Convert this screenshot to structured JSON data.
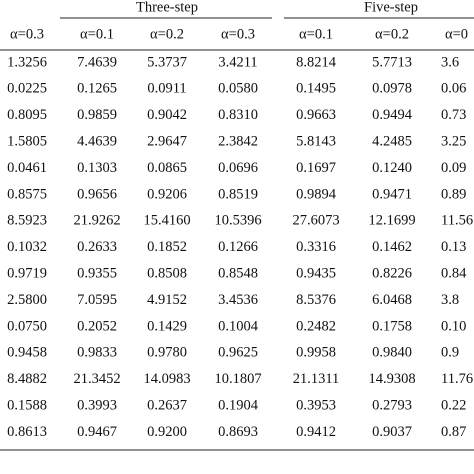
{
  "table": {
    "groups": [
      "Three-step",
      "Five-step"
    ],
    "header": [
      "α=0.3",
      "α=0.1",
      "α=0.2",
      "α=0.3",
      "α=0.1",
      "α=0.2",
      "α=0"
    ],
    "rows": [
      [
        "1.3256",
        "7.4639",
        "5.3737",
        "3.4211",
        "8.8214",
        "5.7713",
        "3.6"
      ],
      [
        "0.0225",
        "0.1265",
        "0.0911",
        "0.0580",
        "0.1495",
        "0.0978",
        "0.06"
      ],
      [
        "0.8095",
        "0.9859",
        "0.9042",
        "0.8310",
        "0.9663",
        "0.9494",
        "0.73"
      ],
      [
        "1.5805",
        "4.4639",
        "2.9647",
        "2.3842",
        "5.8143",
        "4.2485",
        "3.25"
      ],
      [
        "0.0461",
        "0.1303",
        "0.0865",
        "0.0696",
        "0.1697",
        "0.1240",
        "0.09"
      ],
      [
        "0.8575",
        "0.9656",
        "0.9206",
        "0.8519",
        "0.9894",
        "0.9471",
        "0.89"
      ],
      [
        "8.5923",
        "21.9262",
        "15.4160",
        "10.5396",
        "27.6073",
        "12.1699",
        "11.56"
      ],
      [
        "0.1032",
        "0.2633",
        "0.1852",
        "0.1266",
        "0.3316",
        "0.1462",
        "0.13"
      ],
      [
        "0.9719",
        "0.9355",
        "0.8508",
        "0.8548",
        "0.9435",
        "0.8226",
        "0.84"
      ],
      [
        "2.5800",
        "7.0595",
        "4.9152",
        "3.4536",
        "8.5376",
        "6.0468",
        "3.8"
      ],
      [
        "0.0750",
        "0.2052",
        "0.1429",
        "0.1004",
        "0.2482",
        "0.1758",
        "0.10"
      ],
      [
        "0.9458",
        "0.9833",
        "0.9780",
        "0.9625",
        "0.9958",
        "0.9840",
        "0.9"
      ],
      [
        "8.4882",
        "21.3452",
        "14.0983",
        "10.1807",
        "21.1311",
        "14.9308",
        "11.76"
      ],
      [
        "0.1588",
        "0.3993",
        "0.2637",
        "0.1904",
        "0.3953",
        "0.2793",
        "0.22"
      ],
      [
        "0.8613",
        "0.9467",
        "0.9200",
        "0.8693",
        "0.9412",
        "0.9037",
        "0.87"
      ]
    ]
  }
}
